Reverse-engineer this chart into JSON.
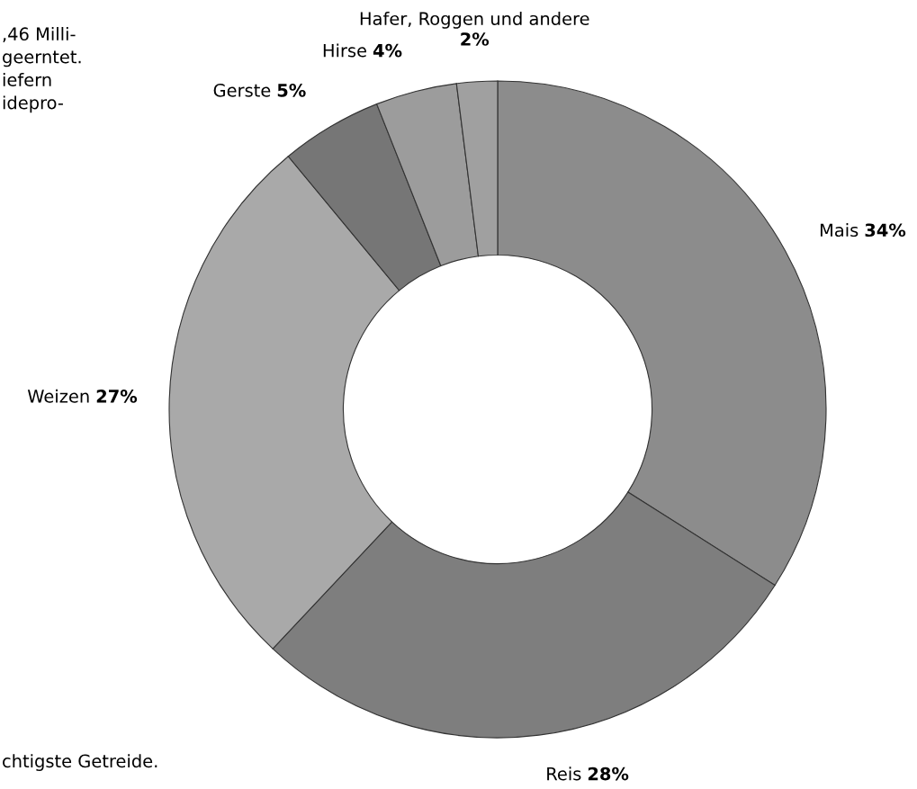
{
  "chart_data": {
    "type": "donut",
    "categories": [
      "Mais",
      "Reis",
      "Weizen",
      "Gerste",
      "Hirse",
      "Hafer, Roggen und andere"
    ],
    "values": [
      34,
      28,
      27,
      5,
      4,
      2
    ],
    "colors": [
      "#8c8c8c",
      "#7e7e7e",
      "#a9a9a9",
      "#767676",
      "#9c9c9c",
      "#a0a0a0"
    ],
    "value_labels": [
      "34%",
      "28%",
      "27%",
      "5%",
      "4%",
      "2%"
    ],
    "annotations": [
      ",46 Milli-\ngeerntet.\niefern\nidepro-",
      "chtigste Getreide."
    ]
  }
}
